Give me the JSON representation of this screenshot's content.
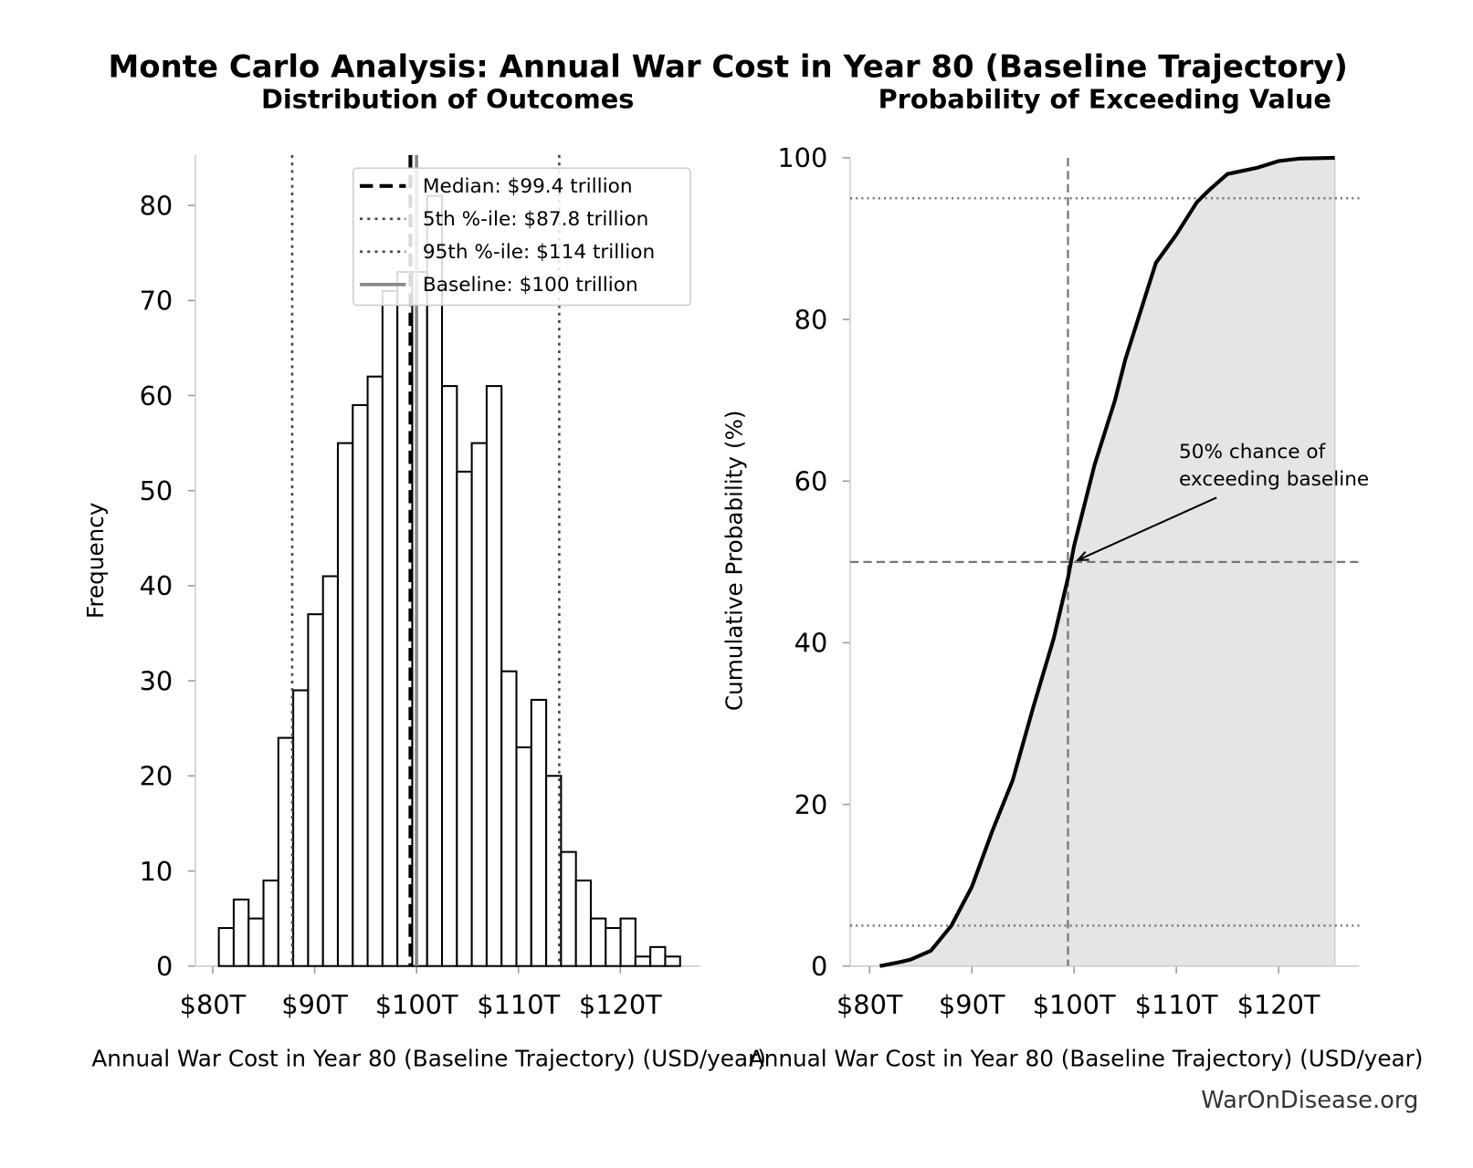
{
  "title": "Monte Carlo Analysis: Annual War Cost in Year 80 (Baseline Trajectory)",
  "source": "WarOnDisease.org",
  "chart_data": [
    {
      "type": "histogram",
      "title": "Distribution of Outcomes",
      "x_label": "Annual War Cost in Year 80 (Baseline Trajectory) (USD/year)",
      "y_label": "Frequency",
      "bins": [
        80.6,
        82.06,
        83.52,
        84.98,
        86.44,
        87.9,
        89.36,
        90.82,
        92.28,
        93.74,
        95.2,
        96.66,
        98.12,
        99.58,
        101.04,
        102.5,
        103.96,
        105.42,
        106.88,
        108.34,
        109.8,
        111.26,
        112.72,
        114.18,
        115.64,
        117.1,
        118.56,
        120.02,
        121.48,
        122.94,
        124.4,
        125.86
      ],
      "values": [
        4,
        7,
        5,
        9,
        24,
        29,
        37,
        41,
        55,
        59,
        62,
        71,
        73,
        73,
        81,
        61,
        52,
        55,
        61,
        31,
        23,
        28,
        20,
        12,
        9,
        5,
        4,
        5,
        1,
        2,
        1
      ],
      "color": "#ffffff",
      "edge_color": "#000000",
      "xlim": [
        78.3,
        127.8
      ],
      "ylim": [
        0,
        85.3
      ],
      "xticks": [
        {
          "value": 80,
          "label": "$80T"
        },
        {
          "value": 90,
          "label": "$90T"
        },
        {
          "value": 100,
          "label": "$100T"
        },
        {
          "value": 110,
          "label": "$110T"
        },
        {
          "value": 120,
          "label": "$120T"
        }
      ],
      "yticks": [
        0,
        10,
        20,
        30,
        40,
        50,
        60,
        70,
        80
      ],
      "lines": [
        {
          "name": "Median: $99.4 trillion",
          "value": 99.4,
          "style": "dashed",
          "color": "#000000"
        },
        {
          "name": "5th %-ile: $87.8 trillion",
          "value": 87.8,
          "style": "dotted",
          "color": "#444444"
        },
        {
          "name": "95th %-ile: $114 trillion",
          "value": 114,
          "style": "dotted",
          "color": "#444444"
        },
        {
          "name": "Baseline: $100 trillion",
          "value": 100,
          "style": "solid",
          "color": "#888888"
        }
      ],
      "legend": "upper right"
    },
    {
      "type": "area",
      "title": "Probability of Exceeding Value",
      "x_label": "Annual War Cost in Year 80 (Baseline Trajectory) (USD/year)",
      "y_label": "Cumulative Probability (%)",
      "x": [
        81,
        83,
        84,
        86,
        88,
        90,
        92,
        94,
        96,
        98,
        99.4,
        100,
        101,
        102,
        103,
        104,
        105,
        106,
        107,
        108,
        110,
        112,
        113.2,
        115,
        118,
        120,
        122,
        125.5
      ],
      "values": [
        0,
        0.5,
        0.8,
        1.9,
        5,
        9.8,
        16.7,
        23,
        32,
        40.5,
        48,
        52,
        57,
        62,
        66,
        70,
        75,
        79,
        83,
        87,
        90.5,
        94.5,
        96,
        98,
        98.8,
        99.6,
        99.9,
        100
      ],
      "color": "#000000",
      "fill": "#e5e5e5",
      "xlim": [
        78.1,
        127.9
      ],
      "ylim": [
        0,
        100
      ],
      "xticks": [
        {
          "value": 80,
          "label": "$80T"
        },
        {
          "value": 90,
          "label": "$90T"
        },
        {
          "value": 100,
          "label": "$100T"
        },
        {
          "value": 110,
          "label": "$110T"
        },
        {
          "value": 120,
          "label": "$120T"
        }
      ],
      "yticks": [
        0,
        20,
        40,
        60,
        80,
        100
      ],
      "ref_lines": [
        {
          "axis": "x",
          "value": 99.4,
          "style": "dashed"
        },
        {
          "axis": "y",
          "value": 50,
          "style": "dashed"
        },
        {
          "axis": "y",
          "value": 5,
          "style": "dotted"
        },
        {
          "axis": "y",
          "value": 95,
          "style": "dotted"
        }
      ],
      "annotation": {
        "text": [
          "50% chance of",
          "exceeding baseline"
        ],
        "target": [
          100,
          50
        ]
      }
    }
  ]
}
